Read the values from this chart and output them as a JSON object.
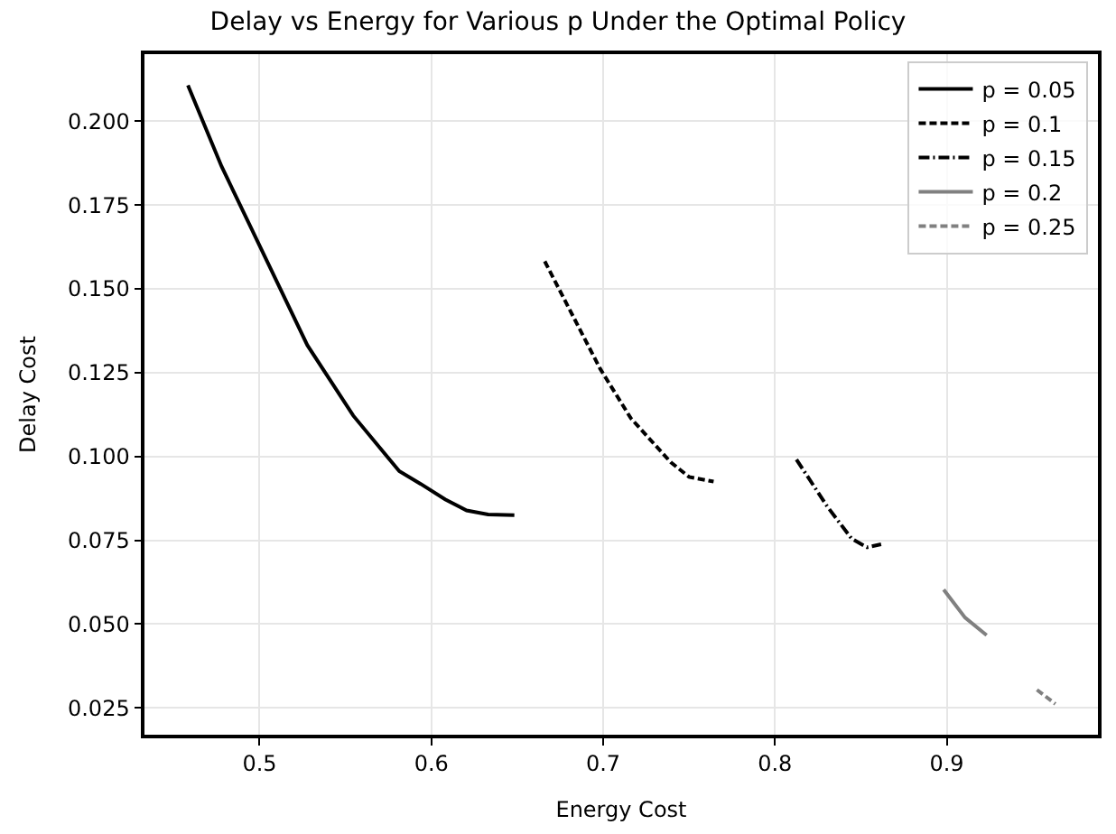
{
  "chart_data": {
    "type": "line",
    "title": "Delay vs Energy for Various p Under the Optimal Policy",
    "xlabel": "Energy Cost",
    "ylabel": "Delay Cost",
    "xlim": [
      0.433,
      0.988
    ],
    "xticks": [
      0.5,
      0.6,
      0.7,
      0.8,
      0.9
    ],
    "ylim": [
      0.017,
      0.22
    ],
    "yticks": [
      {
        "value": 0.025,
        "label": "0.025"
      },
      {
        "value": 0.05,
        "label": "0.050"
      },
      {
        "value": 0.075,
        "label": "0.075"
      },
      {
        "value": 0.1,
        "label": "0.100"
      },
      {
        "value": 0.125,
        "label": "0.125"
      },
      {
        "value": 0.15,
        "label": "0.150"
      },
      {
        "value": 0.175,
        "label": "0.175"
      },
      {
        "value": 0.2,
        "label": "0.200"
      }
    ],
    "grid": true,
    "legend": "top right",
    "marker": "none",
    "series": [
      {
        "name": "p = 0.05",
        "color": "#000000",
        "line_style": "solid",
        "x": [
          0.4583,
          0.4779,
          0.5,
          0.5278,
          0.5545,
          0.5813,
          0.5938,
          0.608,
          0.6205,
          0.633,
          0.6483
        ],
        "values": [
          0.2107,
          0.1865,
          0.1629,
          0.1332,
          0.1122,
          0.0956,
          0.0918,
          0.0872,
          0.0839,
          0.0827,
          0.0825
        ]
      },
      {
        "name": "p = 0.1",
        "color": "#000000",
        "line_style": "dashed",
        "x": [
          0.666,
          0.6982,
          0.7161,
          0.7393,
          0.75,
          0.7643
        ],
        "values": [
          0.1582,
          0.1262,
          0.1114,
          0.0983,
          0.0939,
          0.0925
        ]
      },
      {
        "name": "p = 0.15",
        "color": "#000000",
        "line_style": "dashdot",
        "x": [
          0.8125,
          0.8304,
          0.8446,
          0.8536,
          0.8618
        ],
        "values": [
          0.0991,
          0.0851,
          0.0755,
          0.0729,
          0.0738
        ]
      },
      {
        "name": "p = 0.2",
        "color": "#808080",
        "line_style": "solid",
        "x": [
          0.8982,
          0.9107,
          0.9232
        ],
        "values": [
          0.0603,
          0.0519,
          0.0467
        ]
      },
      {
        "name": "p = 0.25",
        "color": "#808080",
        "line_style": "dashed",
        "x": [
          0.9525,
          0.9632
        ],
        "values": [
          0.0304,
          0.0262
        ]
      }
    ]
  }
}
